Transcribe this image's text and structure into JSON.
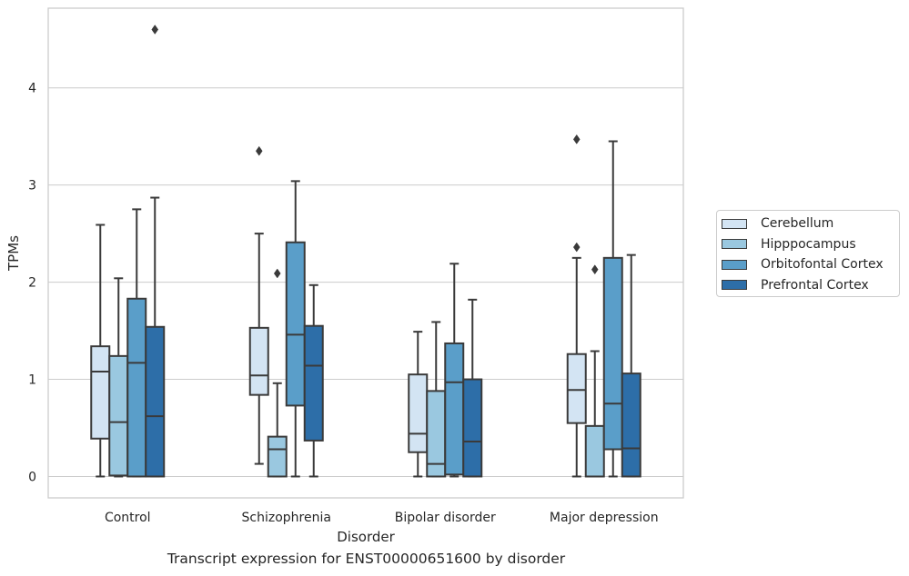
{
  "chart_data": {
    "type": "box",
    "xlabel": "Disorder",
    "ylabel": "TPMs",
    "caption": "Transcript expression for ENST00000651600 by disorder",
    "ylim": [
      -0.22,
      4.82
    ],
    "yticks": [
      0,
      1,
      2,
      3,
      4
    ],
    "grid": "horizontal",
    "legend_position": "right",
    "categories": [
      "Control",
      "Schizophrenia",
      "Bipolar disorder",
      "Major depression"
    ],
    "series": [
      {
        "name": "Cerebellum",
        "color": "#d3e4f3",
        "boxes": [
          {
            "whisker_low": 0.0,
            "q1": 0.39,
            "median": 1.08,
            "q3": 1.34,
            "whisker_high": 2.59,
            "outliers": []
          },
          {
            "whisker_low": 0.13,
            "q1": 0.84,
            "median": 1.04,
            "q3": 1.53,
            "whisker_high": 2.5,
            "outliers": [
              3.35
            ]
          },
          {
            "whisker_low": 0.0,
            "q1": 0.25,
            "median": 0.44,
            "q3": 1.05,
            "whisker_high": 1.49,
            "outliers": []
          },
          {
            "whisker_low": 0.0,
            "q1": 0.55,
            "median": 0.89,
            "q3": 1.26,
            "whisker_high": 2.25,
            "outliers": [
              2.36,
              3.47
            ]
          }
        ]
      },
      {
        "name": "Hipppocampus",
        "color": "#9ac8e0",
        "boxes": [
          {
            "whisker_low": 0.0,
            "q1": 0.01,
            "median": 0.56,
            "q3": 1.24,
            "whisker_high": 2.04,
            "outliers": []
          },
          {
            "whisker_low": 0.0,
            "q1": 0.0,
            "median": 0.28,
            "q3": 0.41,
            "whisker_high": 0.96,
            "outliers": [
              2.09
            ]
          },
          {
            "whisker_low": 0.0,
            "q1": 0.0,
            "median": 0.13,
            "q3": 0.88,
            "whisker_high": 1.59,
            "outliers": []
          },
          {
            "whisker_low": 0.0,
            "q1": 0.0,
            "median": 0.0,
            "q3": 0.52,
            "whisker_high": 1.29,
            "outliers": [
              2.13
            ]
          }
        ]
      },
      {
        "name": "Orbitofontal Cortex",
        "color": "#5a9ec9",
        "boxes": [
          {
            "whisker_low": 0.0,
            "q1": 0.0,
            "median": 1.17,
            "q3": 1.83,
            "whisker_high": 2.75,
            "outliers": []
          },
          {
            "whisker_low": 0.0,
            "q1": 0.73,
            "median": 1.46,
            "q3": 2.41,
            "whisker_high": 3.04,
            "outliers": []
          },
          {
            "whisker_low": 0.0,
            "q1": 0.02,
            "median": 0.97,
            "q3": 1.37,
            "whisker_high": 2.19,
            "outliers": []
          },
          {
            "whisker_low": 0.0,
            "q1": 0.28,
            "median": 0.75,
            "q3": 2.25,
            "whisker_high": 3.45,
            "outliers": []
          }
        ]
      },
      {
        "name": "Prefrontal Cortex",
        "color": "#2d6ea8",
        "boxes": [
          {
            "whisker_low": 0.0,
            "q1": 0.0,
            "median": 0.62,
            "q3": 1.54,
            "whisker_high": 2.87,
            "outliers": [
              4.6
            ]
          },
          {
            "whisker_low": 0.0,
            "q1": 0.37,
            "median": 1.14,
            "q3": 1.55,
            "whisker_high": 1.97,
            "outliers": []
          },
          {
            "whisker_low": 0.0,
            "q1": 0.0,
            "median": 0.36,
            "q3": 1.0,
            "whisker_high": 1.82,
            "outliers": []
          },
          {
            "whisker_low": 0.0,
            "q1": 0.0,
            "median": 0.29,
            "q3": 1.06,
            "whisker_high": 2.28,
            "outliers": []
          }
        ]
      }
    ]
  }
}
